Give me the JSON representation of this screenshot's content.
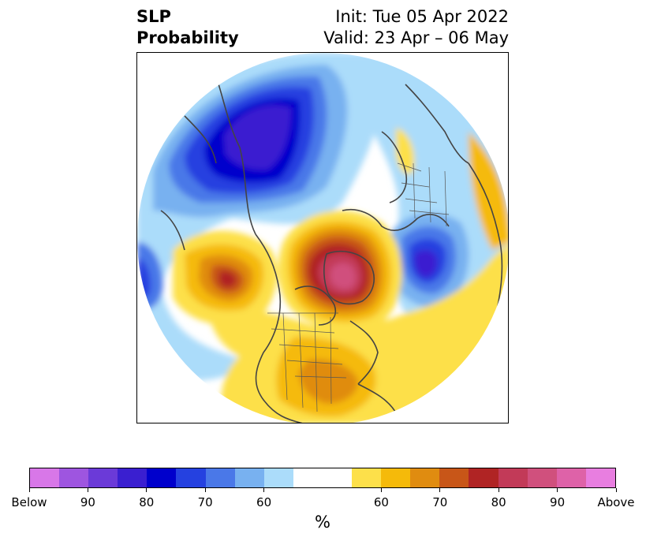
{
  "title": {
    "left_line1": "SLP",
    "left_line2": "Probability",
    "right_line1": "Init: Tue 05 Apr 2022",
    "right_line2": "Valid: 23 Apr – 06 May"
  },
  "colorbar": {
    "unit": "%",
    "colors": [
      "#d877e8",
      "#9e55e0",
      "#6b3ad8",
      "#3a1fd0",
      "#0000cc",
      "#2541e0",
      "#4a78e8",
      "#78b1f0",
      "#abdcfa",
      "#ffffff",
      "#ffffff",
      "#fde04a",
      "#f5ba0a",
      "#e08c10",
      "#c85618",
      "#b02424",
      "#c23a58",
      "#d0507d",
      "#de62a8",
      "#e87ee0"
    ],
    "ticks": [
      "Below",
      "90",
      "80",
      "70",
      "60",
      "60",
      "70",
      "80",
      "90",
      "Above"
    ]
  },
  "map": {
    "projection": "north-polar-stereographic",
    "field": "SLP probability"
  }
}
